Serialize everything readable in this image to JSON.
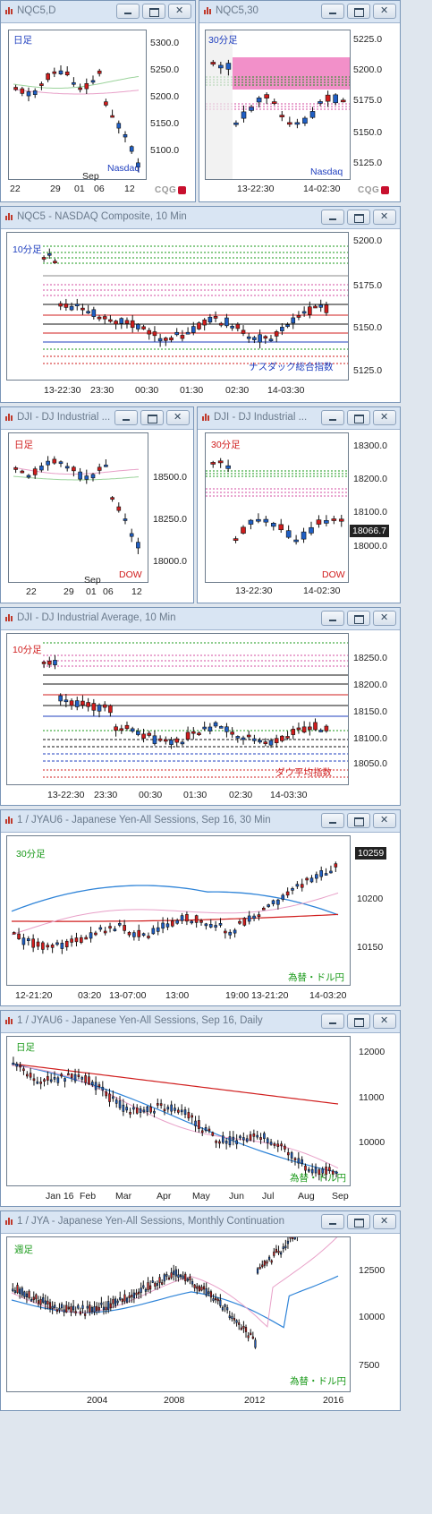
{
  "colors": {
    "titlebar": "#d9e5f3",
    "up": "#1f5fc5",
    "down": "#d01d1d",
    "accent_blue": "#1f3fbf",
    "accent_red": "#d01d1d",
    "accent_green": "#1a9a1a"
  },
  "panels": {
    "nqc5_daily": {
      "title": "NQC5,D",
      "period_label": "日足",
      "series_label": "Nasdaq",
      "yticks": [
        "5300.0",
        "5250.0",
        "5200.0",
        "5150.0",
        "5100.0"
      ],
      "xticks": [
        "22",
        "29",
        "01",
        "06",
        "12"
      ],
      "month_label": "Sep",
      "icon": "chart-icon",
      "brand": "CQG"
    },
    "nqc5_30": {
      "title": "NQC5,30",
      "period_label": "30分足",
      "series_label": "Nasdaq",
      "yticks": [
        "5225.0",
        "5200.0",
        "5175.0",
        "5150.0",
        "5125.0"
      ],
      "xticks": [
        "13-22:30",
        "14-02:30"
      ],
      "brand": "CQG"
    },
    "nqc5_10": {
      "title": "NQC5 - NASDAQ Composite, 10 Min",
      "period_label": "10分足",
      "series_label": "ナスダック総合指数",
      "yticks": [
        "5200.0",
        "5175.0",
        "5150.0",
        "5125.0"
      ],
      "xticks": [
        "13-22:30",
        "23:30",
        "00:30",
        "01:30",
        "02:30",
        "14-03:30"
      ]
    },
    "dji_daily": {
      "title": "DJI - DJ Industrial ...",
      "period_label": "日足",
      "series_label": "DOW",
      "yticks": [
        "18500.0",
        "18250.0",
        "18000.0"
      ],
      "xticks": [
        "22",
        "29",
        "01",
        "06",
        "12"
      ],
      "month_label": "Sep"
    },
    "dji_30": {
      "title": "DJI - DJ Industrial ...",
      "period_label": "30分足",
      "series_label": "DOW",
      "yticks": [
        "18300.0",
        "18200.0",
        "18100.0",
        "18000.0"
      ],
      "price_box": "18066.7",
      "xticks": [
        "13-22:30",
        "14-02:30"
      ]
    },
    "dji_10": {
      "title": "DJI - DJ Industrial Average, 10 Min",
      "period_label": "10分足",
      "series_label": "ダウ平均指数",
      "yticks": [
        "18250.0",
        "18200.0",
        "18150.0",
        "18100.0",
        "18050.0"
      ],
      "xticks": [
        "13-22:30",
        "23:30",
        "00:30",
        "01:30",
        "02:30",
        "14-03:30"
      ]
    },
    "jya_30": {
      "title": "1 / JYAU6 - Japanese Yen-All Sessions, Sep 16, 30 Min",
      "period_label": "30分足",
      "series_label": "為替・ドル円",
      "yticks": [
        "10200",
        "10150"
      ],
      "price_box": "10259",
      "xticks": [
        "12-21:20",
        "03:20",
        "13-07:00",
        "13:00",
        "19:00",
        "13-21:20",
        "14-03:20"
      ]
    },
    "jya_daily": {
      "title": "1 / JYAU6 - Japanese Yen-All Sessions, Sep 16, Daily",
      "period_label": "日足",
      "series_label": "為替・ドル円",
      "yticks": [
        "12000",
        "11000",
        "10000"
      ],
      "xticks": [
        "Jan 16",
        "Feb",
        "Mar",
        "Apr",
        "May",
        "Jun",
        "Jul",
        "Aug",
        "Sep"
      ]
    },
    "jya_monthly": {
      "title": "1 / JYA - Japanese Yen-All Sessions, Monthly Continuation",
      "period_label": "週足",
      "series_label": "為替・ドル円",
      "yticks": [
        "12500",
        "10000",
        "7500"
      ],
      "xticks": [
        "2004",
        "2008",
        "2012",
        "2016"
      ]
    }
  }
}
